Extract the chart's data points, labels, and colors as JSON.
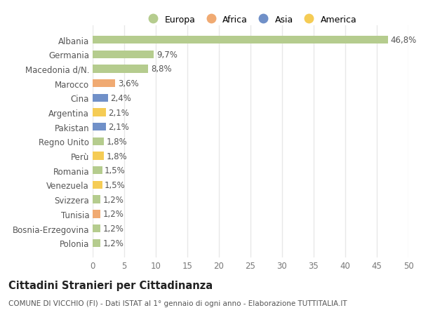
{
  "labels": [
    "Albania",
    "Germania",
    "Macedonia d/N.",
    "Marocco",
    "Cina",
    "Argentina",
    "Pakistan",
    "Regno Unito",
    "Perù",
    "Romania",
    "Venezuela",
    "Svizzera",
    "Tunisia",
    "Bosnia-Erzegovina",
    "Polonia"
  ],
  "values": [
    46.8,
    9.7,
    8.8,
    3.6,
    2.4,
    2.1,
    2.1,
    1.8,
    1.8,
    1.5,
    1.5,
    1.2,
    1.2,
    1.2,
    1.2
  ],
  "bar_colors": [
    "#b5cc8e",
    "#b5cc8e",
    "#b5cc8e",
    "#f0aa72",
    "#7090c8",
    "#f5cc55",
    "#7090c8",
    "#b5cc8e",
    "#f5cc55",
    "#b5cc8e",
    "#f5cc55",
    "#b5cc8e",
    "#f0aa72",
    "#b5cc8e",
    "#b5cc8e"
  ],
  "pct_labels": [
    "46,8%",
    "9,7%",
    "8,8%",
    "3,6%",
    "2,4%",
    "2,1%",
    "2,1%",
    "1,8%",
    "1,8%",
    "1,5%",
    "1,5%",
    "1,2%",
    "1,2%",
    "1,2%",
    "1,2%"
  ],
  "title": "Cittadini Stranieri per Cittadinanza",
  "subtitle": "COMUNE DI VICCHIO (FI) - Dati ISTAT al 1° gennaio di ogni anno - Elaborazione TUTTITALIA.IT",
  "xlim": [
    0,
    50
  ],
  "xticks": [
    0,
    5,
    10,
    15,
    20,
    25,
    30,
    35,
    40,
    45,
    50
  ],
  "legend_labels": [
    "Europa",
    "Africa",
    "Asia",
    "America"
  ],
  "legend_colors": [
    "#b5cc8e",
    "#f0aa72",
    "#7090c8",
    "#f5cc55"
  ],
  "background_color": "#ffffff",
  "grid_color": "#e8e8e8",
  "bar_height": 0.55,
  "label_fontsize": 8.5,
  "tick_fontsize": 8.5,
  "title_fontsize": 10.5,
  "subtitle_fontsize": 7.5
}
